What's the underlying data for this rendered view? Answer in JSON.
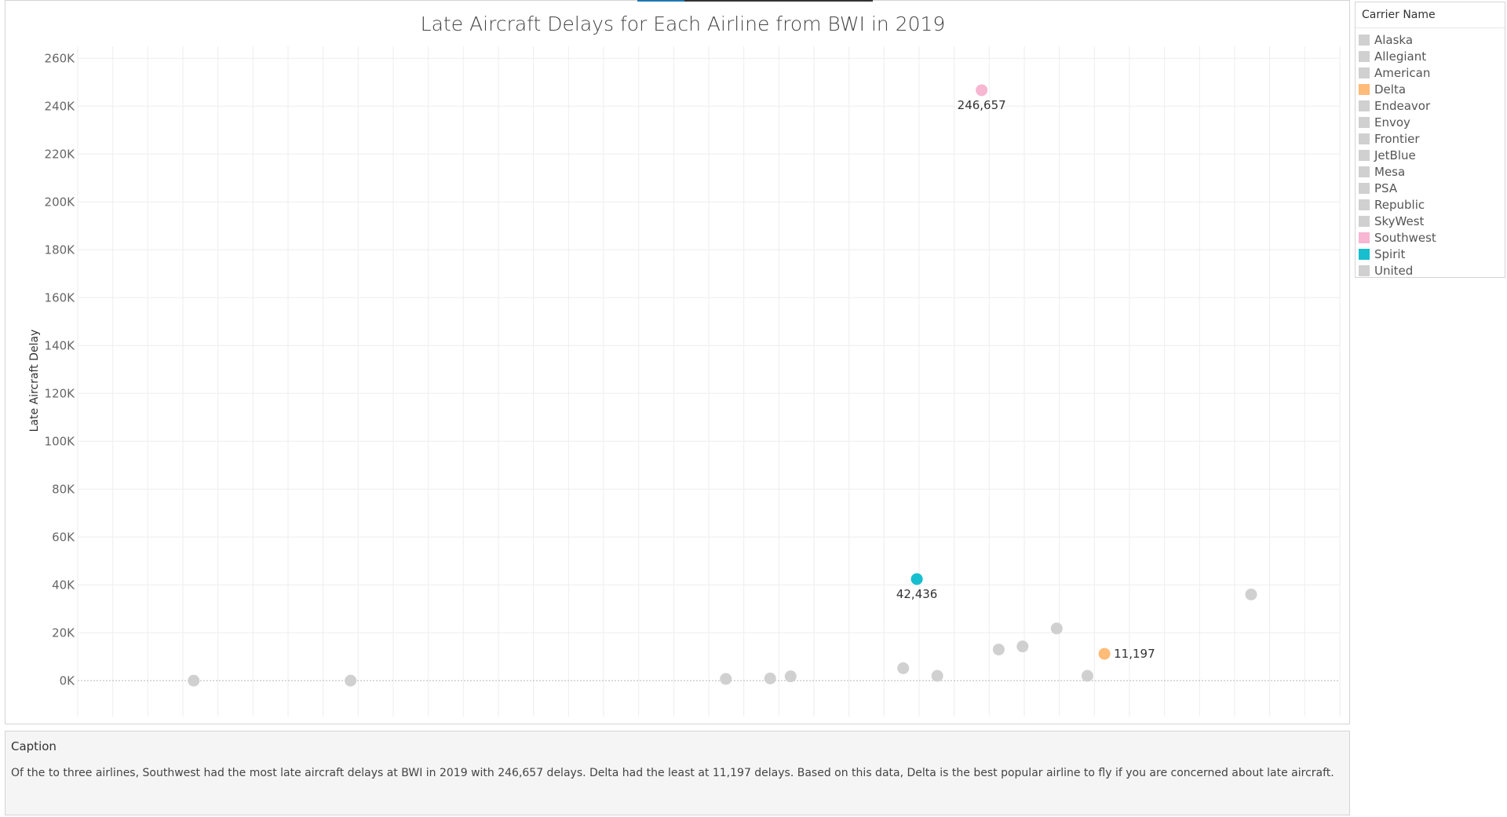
{
  "chart_data": {
    "type": "scatter",
    "title": "Late Aircraft Delays for Each Airline from BWI in 2019",
    "ylabel": "Late Aircraft Delay",
    "xlabel": "",
    "ylim": [
      -15000,
      265000
    ],
    "xlim": [
      0,
      37
    ],
    "yticks": [
      0,
      20000,
      40000,
      60000,
      80000,
      100000,
      120000,
      140000,
      160000,
      180000,
      200000,
      220000,
      240000,
      260000
    ],
    "ytick_labels": [
      "0K",
      "20K",
      "40K",
      "60K",
      "80K",
      "100K",
      "120K",
      "140K",
      "160K",
      "180K",
      "200K",
      "220K",
      "240K",
      "260K"
    ],
    "x_gridlines": 36,
    "grid": true,
    "legend_position": "right",
    "points": [
      {
        "x": 3.4,
        "y": 0,
        "color": "#d0d0d0",
        "label": ""
      },
      {
        "x": 8.0,
        "y": 0,
        "color": "#d0d0d0",
        "label": ""
      },
      {
        "x": 19.0,
        "y": 700,
        "color": "#d0d0d0",
        "label": ""
      },
      {
        "x": 20.3,
        "y": 900,
        "color": "#d0d0d0",
        "label": ""
      },
      {
        "x": 20.9,
        "y": 1800,
        "color": "#d0d0d0",
        "label": ""
      },
      {
        "x": 24.2,
        "y": 5200,
        "color": "#d0d0d0",
        "label": ""
      },
      {
        "x": 25.2,
        "y": 2000,
        "color": "#d0d0d0",
        "label": ""
      },
      {
        "x": 24.6,
        "y": 42436,
        "color": "#17becf",
        "label": "42,436",
        "label_pos": "below"
      },
      {
        "x": 26.5,
        "y": 246657,
        "color": "#f7b6d2",
        "label": "246,657",
        "label_pos": "below"
      },
      {
        "x": 27.0,
        "y": 13000,
        "color": "#d0d0d0",
        "label": ""
      },
      {
        "x": 27.7,
        "y": 14300,
        "color": "#d0d0d0",
        "label": ""
      },
      {
        "x": 28.7,
        "y": 21800,
        "color": "#d0d0d0",
        "label": ""
      },
      {
        "x": 29.6,
        "y": 2000,
        "color": "#d0d0d0",
        "label": ""
      },
      {
        "x": 30.1,
        "y": 11197,
        "color": "#ffbb78",
        "label": "11,197",
        "label_pos": "right"
      },
      {
        "x": 34.4,
        "y": 36000,
        "color": "#d0d0d0",
        "label": ""
      }
    ]
  },
  "legend": {
    "title": "Carrier Name",
    "items": [
      {
        "label": "Alaska",
        "color": "#d0d0d0"
      },
      {
        "label": "Allegiant",
        "color": "#d0d0d0"
      },
      {
        "label": "American",
        "color": "#d0d0d0"
      },
      {
        "label": "Delta",
        "color": "#ffbb78"
      },
      {
        "label": "Endeavor",
        "color": "#d0d0d0"
      },
      {
        "label": "Envoy",
        "color": "#d0d0d0"
      },
      {
        "label": "Frontier",
        "color": "#d0d0d0"
      },
      {
        "label": "JetBlue",
        "color": "#d0d0d0"
      },
      {
        "label": "Mesa",
        "color": "#d0d0d0"
      },
      {
        "label": "PSA",
        "color": "#d0d0d0"
      },
      {
        "label": "Republic",
        "color": "#d0d0d0"
      },
      {
        "label": "SkyWest",
        "color": "#d0d0d0"
      },
      {
        "label": "Southwest",
        "color": "#f7b6d2"
      },
      {
        "label": "Spirit",
        "color": "#17becf"
      },
      {
        "label": "United",
        "color": "#d0d0d0"
      }
    ]
  },
  "caption": {
    "title": "Caption",
    "text": "Of the to three airlines, Southwest had the most late aircraft delays at BWI in 2019 with 246,657 delays. Delta had the least at 11,197 delays. Based on this data, Delta is the best popular airline to fly if you are concerned about late aircraft."
  }
}
